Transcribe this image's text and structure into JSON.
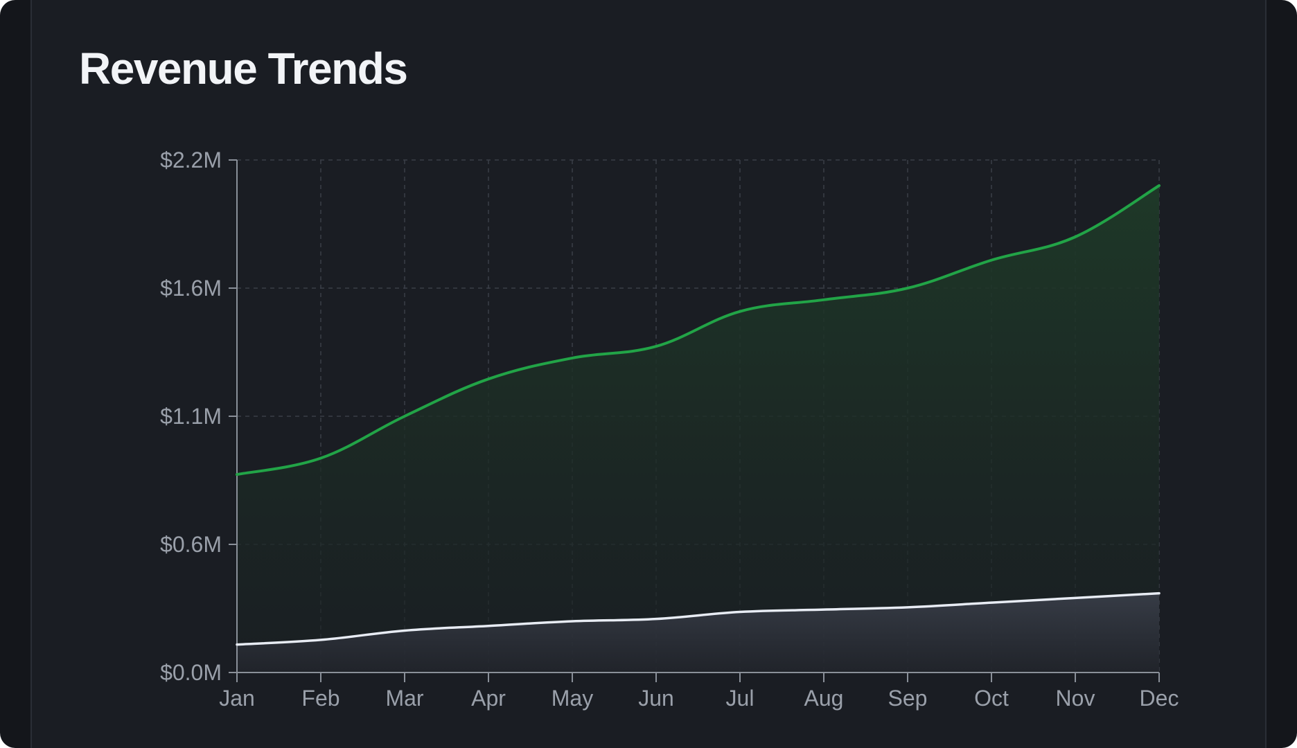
{
  "card": {
    "title": "Revenue Trends"
  },
  "colors": {
    "background": "#14161b",
    "card": "#1a1d23",
    "grid": "#3a3f48",
    "axis": "#8a9099",
    "series_green": "#22a447",
    "series_white": "#e8ecf4"
  },
  "chart_data": {
    "type": "area",
    "title": "Revenue Trends",
    "xlabel": "",
    "ylabel": "",
    "categories": [
      "Jan",
      "Feb",
      "Mar",
      "Apr",
      "May",
      "Jun",
      "Jul",
      "Aug",
      "Sep",
      "Oct",
      "Nov",
      "Dec"
    ],
    "y_ticks": [
      "$0.0M",
      "$0.6M",
      "$1.1M",
      "$1.6M",
      "$2.2M"
    ],
    "ylim": [
      0,
      2.2
    ],
    "grid": true,
    "legend": "none",
    "series": [
      {
        "color": "#22a447",
        "values": [
          0.85,
          0.92,
          1.1,
          1.26,
          1.35,
          1.4,
          1.55,
          1.6,
          1.65,
          1.77,
          1.87,
          2.09
        ]
      },
      {
        "color": "#e8ecf4",
        "values": [
          0.12,
          0.14,
          0.18,
          0.2,
          0.22,
          0.23,
          0.26,
          0.27,
          0.28,
          0.3,
          0.32,
          0.34
        ]
      }
    ]
  }
}
